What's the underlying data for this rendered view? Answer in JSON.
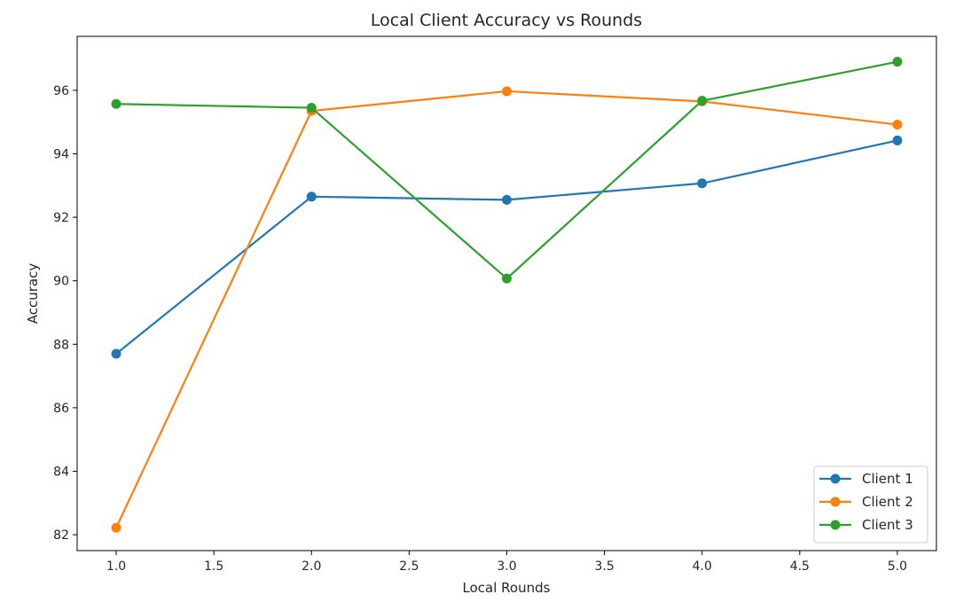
{
  "chart_data": {
    "type": "line",
    "title": "Local Client Accuracy vs Rounds",
    "xlabel": "Local Rounds",
    "ylabel": "Accuracy",
    "x": [
      1.0,
      2.0,
      3.0,
      4.0,
      5.0
    ],
    "xlim": [
      0.8,
      5.2
    ],
    "ylim": [
      81.5,
      97.7
    ],
    "xticks": [
      1.0,
      1.5,
      2.0,
      2.5,
      3.0,
      3.5,
      4.0,
      4.5,
      5.0
    ],
    "xtick_labels": [
      "1.0",
      "1.5",
      "2.0",
      "2.5",
      "3.0",
      "3.5",
      "4.0",
      "4.5",
      "5.0"
    ],
    "yticks": [
      82,
      84,
      86,
      88,
      90,
      92,
      94,
      96
    ],
    "ytick_labels": [
      "82",
      "84",
      "86",
      "88",
      "90",
      "92",
      "94",
      "96"
    ],
    "grid": false,
    "legend_position": "bottom-right",
    "series": [
      {
        "name": "Client 1",
        "color": "#1f77b4",
        "values": [
          87.7,
          92.65,
          92.55,
          93.07,
          94.42
        ]
      },
      {
        "name": "Client 2",
        "color": "#ff7f0e",
        "values": [
          82.22,
          95.35,
          95.97,
          95.65,
          94.92
        ]
      },
      {
        "name": "Client 3",
        "color": "#2ca02c",
        "values": [
          95.57,
          95.45,
          90.07,
          95.67,
          96.9
        ]
      }
    ]
  }
}
